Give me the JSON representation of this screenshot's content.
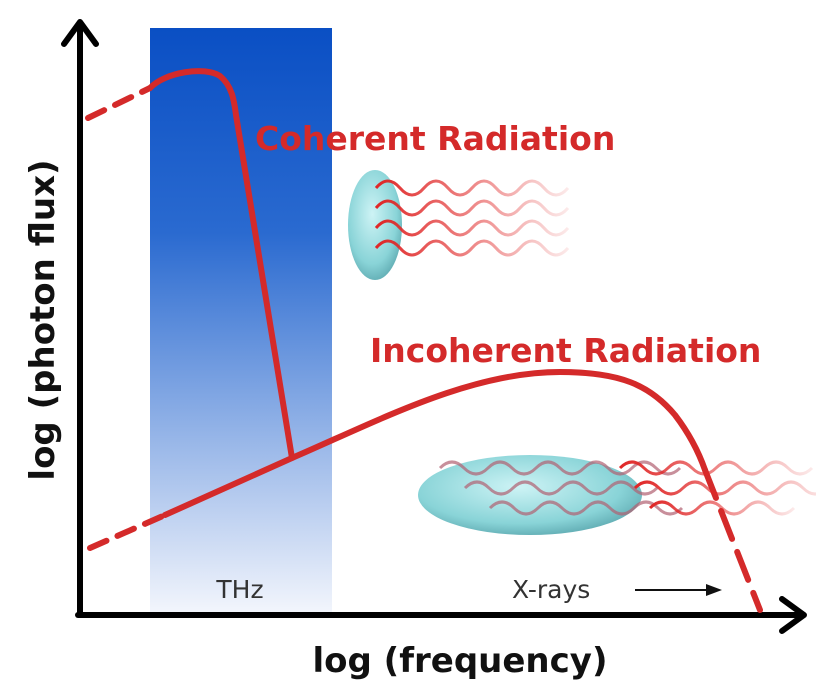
{
  "axes": {
    "x_label": "log (frequency)",
    "y_label": "log (photon flux)"
  },
  "regions": {
    "thz": "THz",
    "xrays": "X-rays"
  },
  "curves": {
    "coherent": "Coherent Radiation",
    "incoherent": "Incoherent Radiation"
  }
}
